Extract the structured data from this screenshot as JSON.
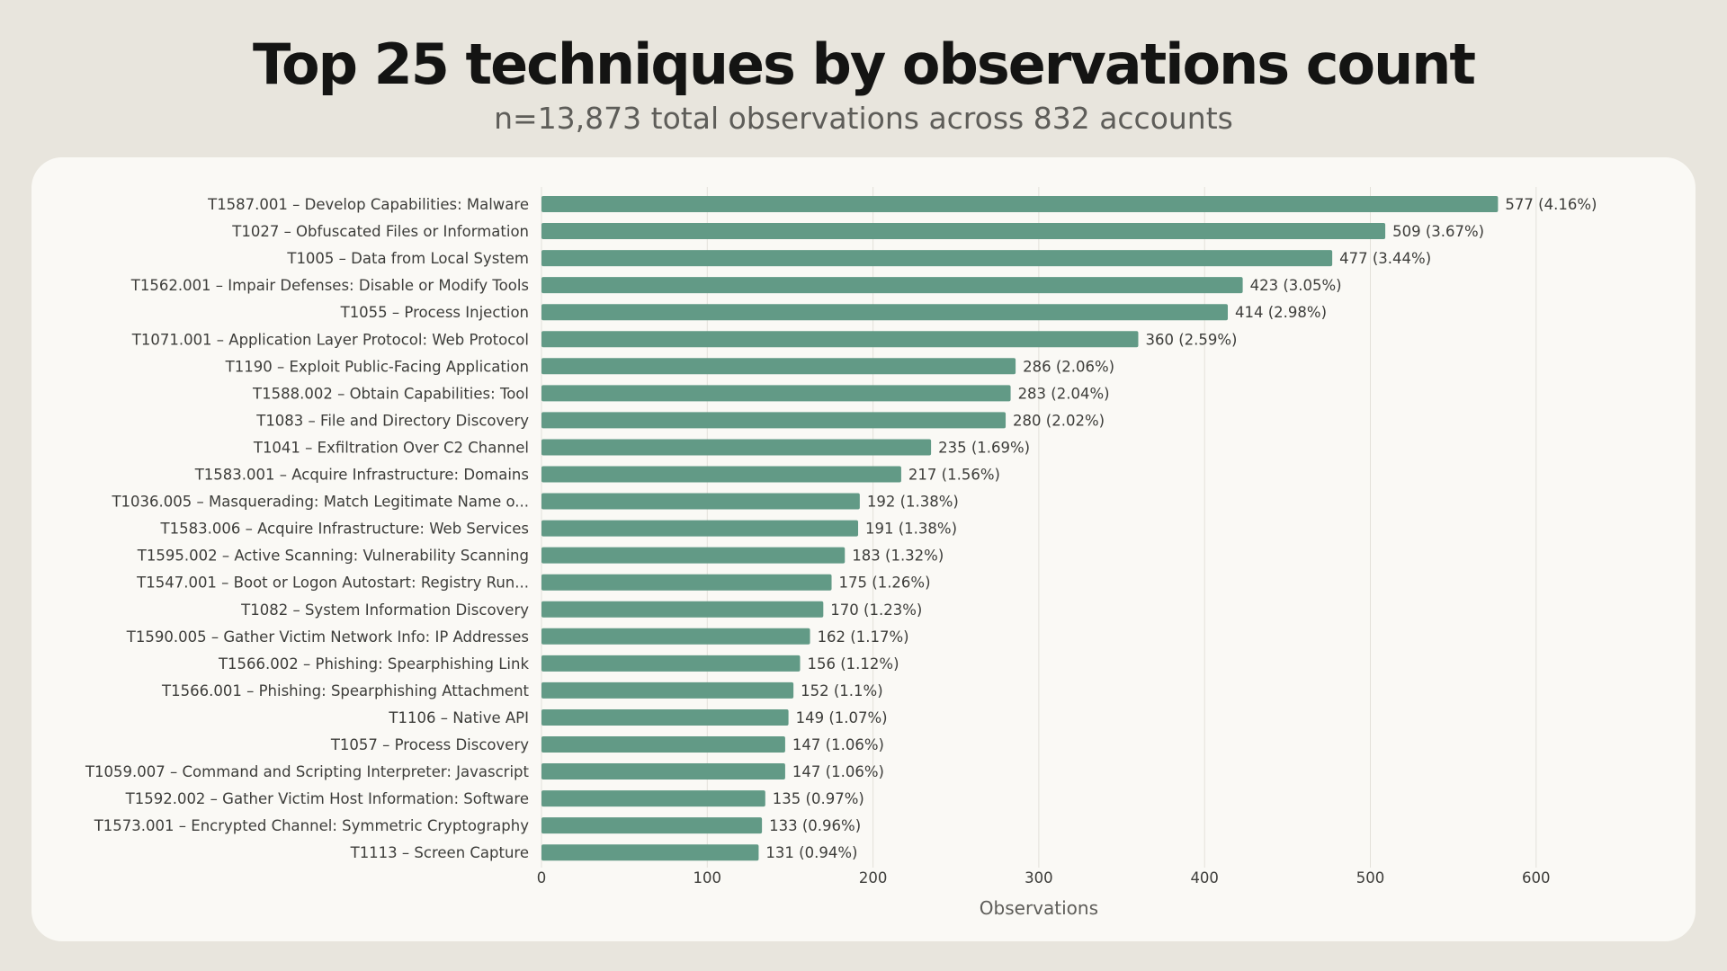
{
  "header": {
    "title": "Top 25 techniques by observations count",
    "subtitle": "n=13,873 total observations across 832 accounts"
  },
  "colors": {
    "background": "#e8e5dd",
    "card": "#faf9f5",
    "bar": "#629a86",
    "grid": "#e3e1da",
    "text": "#3d3d3a"
  },
  "chart_data": {
    "type": "bar",
    "orientation": "horizontal",
    "title": "Top 25 techniques by observations count",
    "subtitle": "n=13,873 total observations across 832 accounts",
    "xlabel": "Observations",
    "ylabel": "",
    "xlim": [
      0,
      600
    ],
    "xticks": [
      0,
      100,
      200,
      300,
      400,
      500,
      600
    ],
    "grid": "vertical",
    "legend": "none",
    "categories": [
      "T1587.001 – Develop Capabilities: Malware",
      "T1027 – Obfuscated Files or Information",
      "T1005 – Data from Local System",
      "T1562.001 – Impair Defenses: Disable or Modify Tools",
      "T1055 – Process Injection",
      "T1071.001 – Application Layer Protocol: Web Protocol",
      "T1190 – Exploit Public-Facing Application",
      "T1588.002 – Obtain Capabilities: Tool",
      "T1083 – File and Directory Discovery",
      "T1041 – Exfiltration Over C2 Channel",
      "T1583.001 – Acquire Infrastructure: Domains",
      "T1036.005 – Masquerading: Match Legitimate Name o...",
      "T1583.006 – Acquire Infrastructure: Web Services",
      "T1595.002 – Active Scanning: Vulnerability Scanning",
      "T1547.001 – Boot or Logon Autostart: Registry Run...",
      "T1082 – System Information Discovery",
      "T1590.005 – Gather Victim Network Info: IP Addresses",
      "T1566.002 – Phishing: Spearphishing Link",
      "T1566.001 – Phishing: Spearphishing Attachment",
      "T1106 – Native API",
      "T1057 – Process Discovery",
      "T1059.007 – Command and Scripting Interpreter: Javascript",
      "T1592.002 – Gather Victim Host Information: Software",
      "T1573.001 – Encrypted Channel: Symmetric Cryptography",
      "T1113 – Screen Capture"
    ],
    "values": [
      577,
      509,
      477,
      423,
      414,
      360,
      286,
      283,
      280,
      235,
      217,
      192,
      191,
      183,
      175,
      170,
      162,
      156,
      152,
      149,
      147,
      147,
      135,
      133,
      131
    ],
    "value_labels": [
      "577 (4.16%)",
      "509 (3.67%)",
      "477 (3.44%)",
      "423 (3.05%)",
      "414 (2.98%)",
      "360 (2.59%)",
      "286 (2.06%)",
      "283 (2.04%)",
      "280 (2.02%)",
      "235 (1.69%)",
      "217 (1.56%)",
      "192 (1.38%)",
      "191 (1.38%)",
      "183 (1.32%)",
      "175 (1.26%)",
      "170 (1.23%)",
      "162 (1.17%)",
      "156 (1.12%)",
      "152 (1.1%)",
      "149 (1.07%)",
      "147 (1.06%)",
      "147 (1.06%)",
      "135 (0.97%)",
      "133 (0.96%)",
      "131 (0.94%)"
    ]
  }
}
